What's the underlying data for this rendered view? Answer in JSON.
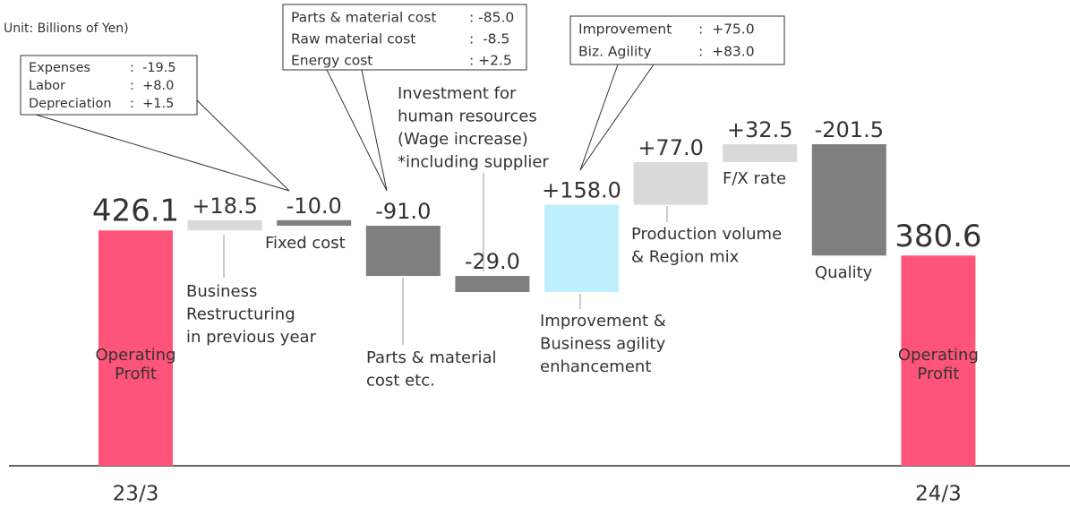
{
  "chart_data": {
    "type": "waterfall",
    "unit_note": "Unit: Billions of Yen)",
    "categories": [
      [
        "Operating",
        "Profit"
      ],
      [
        "Business",
        "Restructuring",
        "in previous year"
      ],
      [
        "Fixed cost"
      ],
      [
        "Parts & material",
        "cost etc."
      ],
      [
        "Investment for",
        "human resources",
        "(Wage increase)",
        "*including supplier"
      ],
      [
        "Improvement &",
        "Business agility",
        "enhancement"
      ],
      [
        "Production volume",
        "& Region mix"
      ],
      [
        "F/X rate"
      ],
      [
        "Quality"
      ],
      [
        "Operating",
        "Profit"
      ]
    ],
    "measure": [
      "total",
      "relative",
      "relative",
      "relative",
      "relative",
      "relative",
      "relative",
      "relative",
      "relative",
      "total"
    ],
    "values": [
      426.1,
      18.5,
      -10.0,
      -91.0,
      -29.0,
      158.0,
      77.0,
      32.5,
      -201.5,
      380.6
    ],
    "value_labels": [
      "426.1",
      "+18.5",
      "-10.0",
      "-91.0",
      "-29.0",
      "+158.0",
      "+77.0",
      "+32.5",
      "-201.5",
      "380.6"
    ],
    "colors": [
      "#ff5479",
      "#d9d9d9",
      "#7f7f7f",
      "#7f7f7f",
      "#7f7f7f",
      "#bfeefc",
      "#d9d9d9",
      "#d9d9d9",
      "#7f7f7f",
      "#ff5479"
    ],
    "periods": [
      "23/3",
      "24/3"
    ],
    "callouts": [
      {
        "rows": [
          {
            "label": "Expenses",
            "value": ":  -19.5"
          },
          {
            "label": "Labor",
            "value": ":  +8.0"
          },
          {
            "label": "Depreciation",
            "value": ":  +1.5"
          }
        ]
      },
      {
        "rows": [
          {
            "label": "Parts & material cost",
            "value": ": -85.0"
          },
          {
            "label": "Raw material cost",
            "value": ":  -8.5"
          },
          {
            "label": "Energy cost",
            "value": ": +2.5"
          }
        ]
      },
      {
        "rows": [
          {
            "label": "Improvement",
            "value": ":  +75.0"
          },
          {
            "label": "Biz. Agility",
            "value": ":  +83.0"
          }
        ]
      }
    ]
  }
}
